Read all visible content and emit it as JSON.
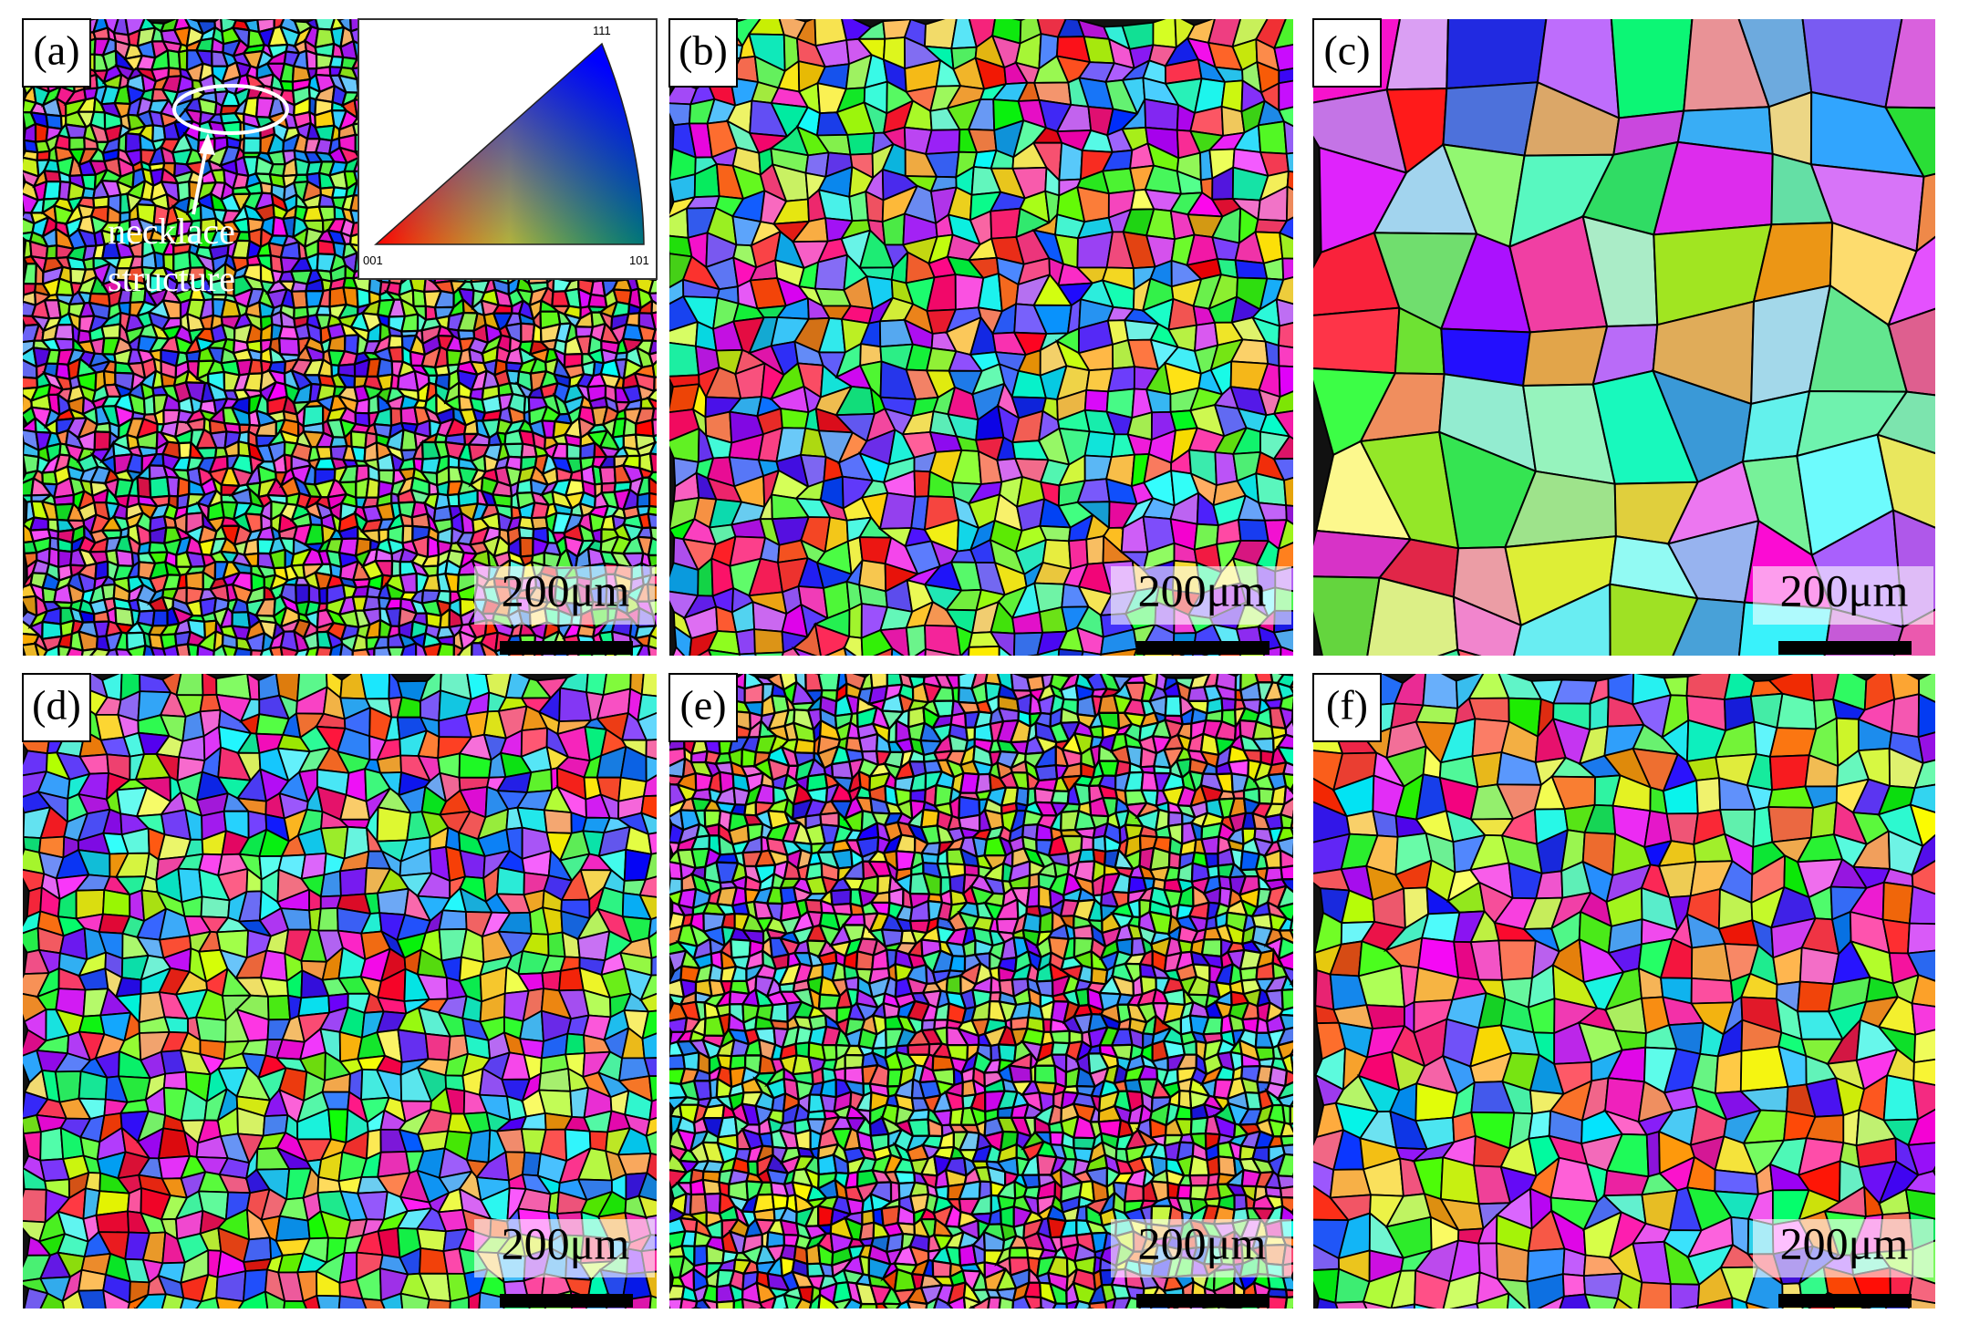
{
  "panels": [
    {
      "label": "(a)",
      "scale_bar": "200μm"
    },
    {
      "label": "(b)",
      "scale_bar": "200μm"
    },
    {
      "label": "(c)",
      "scale_bar": "200μm"
    },
    {
      "label": "(d)",
      "scale_bar": "200μm"
    },
    {
      "label": "(e)",
      "scale_bar": "200μm"
    },
    {
      "label": "(f)",
      "scale_bar": "200μm"
    }
  ],
  "annotation": {
    "lines": [
      "necklace",
      "structure"
    ]
  },
  "ipf_legend": {
    "bottom_left": "001",
    "bottom_right": "101",
    "top": "111"
  }
}
